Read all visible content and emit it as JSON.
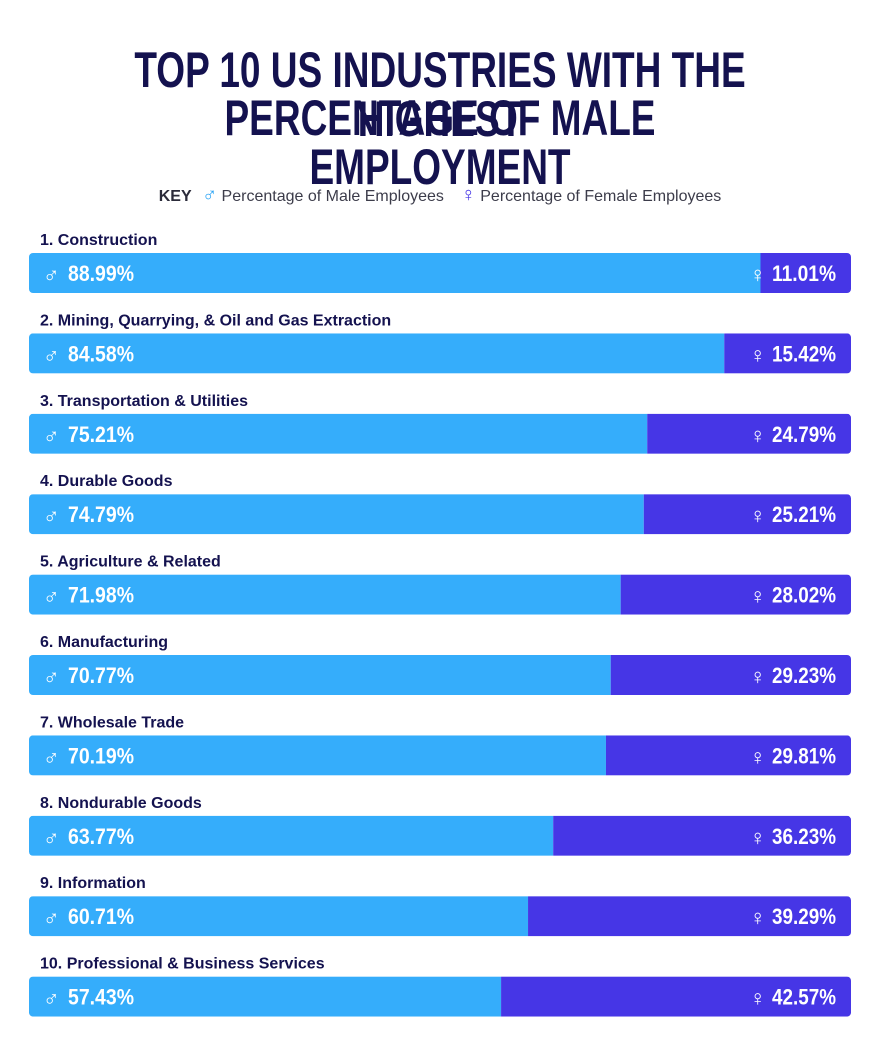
{
  "title_line1": "TOP 10 US INDUSTRIES WITH THE HIGHEST",
  "title_line2": "PERCENTAGE OF MALE EMPLOYMENT",
  "key": {
    "label": "KEY",
    "male_symbol": "♂",
    "male_label": "Percentage of Male Employees",
    "female_symbol": "♀",
    "female_label": "Percentage of Female Employees"
  },
  "colors": {
    "male": "#35adfb",
    "female": "#4636e6",
    "title": "#14124f",
    "label": "#14124f"
  },
  "chart_data": {
    "type": "bar",
    "orientation": "horizontal-stacked-100",
    "title": "TOP 10 US INDUSTRIES WITH THE HIGHEST PERCENTAGE OF MALE EMPLOYMENT",
    "categories": [
      "1. Construction",
      "2. Mining, Quarrying, & Oil and Gas Extraction",
      "3. Transportation & Utilities",
      "4. Durable Goods",
      "5. Agriculture & Related",
      "6. Manufacturing",
      "7. Wholesale Trade",
      "8. Nondurable Goods",
      "9. Information",
      "10. Professional & Business Services"
    ],
    "series": [
      {
        "name": "Percentage of Male Employees",
        "values": [
          88.99,
          84.58,
          75.21,
          74.79,
          71.98,
          70.77,
          70.19,
          63.77,
          60.71,
          57.43
        ],
        "labels": [
          "88.99%",
          "84.58%",
          "75.21%",
          "74.79%",
          "71.98%",
          "70.77%",
          "70.19%",
          "63.77%",
          "60.71%",
          "57.43%"
        ]
      },
      {
        "name": "Percentage of Female Employees",
        "values": [
          11.01,
          15.42,
          24.79,
          25.21,
          28.02,
          29.23,
          29.81,
          36.23,
          39.29,
          42.57
        ],
        "labels": [
          "11.01%",
          "15.42%",
          "24.79%",
          "25.21%",
          "28.02%",
          "29.23%",
          "29.81%",
          "36.23%",
          "39.29%",
          "42.57%"
        ]
      }
    ],
    "xlim": [
      0,
      100
    ],
    "legend": "top-center"
  }
}
